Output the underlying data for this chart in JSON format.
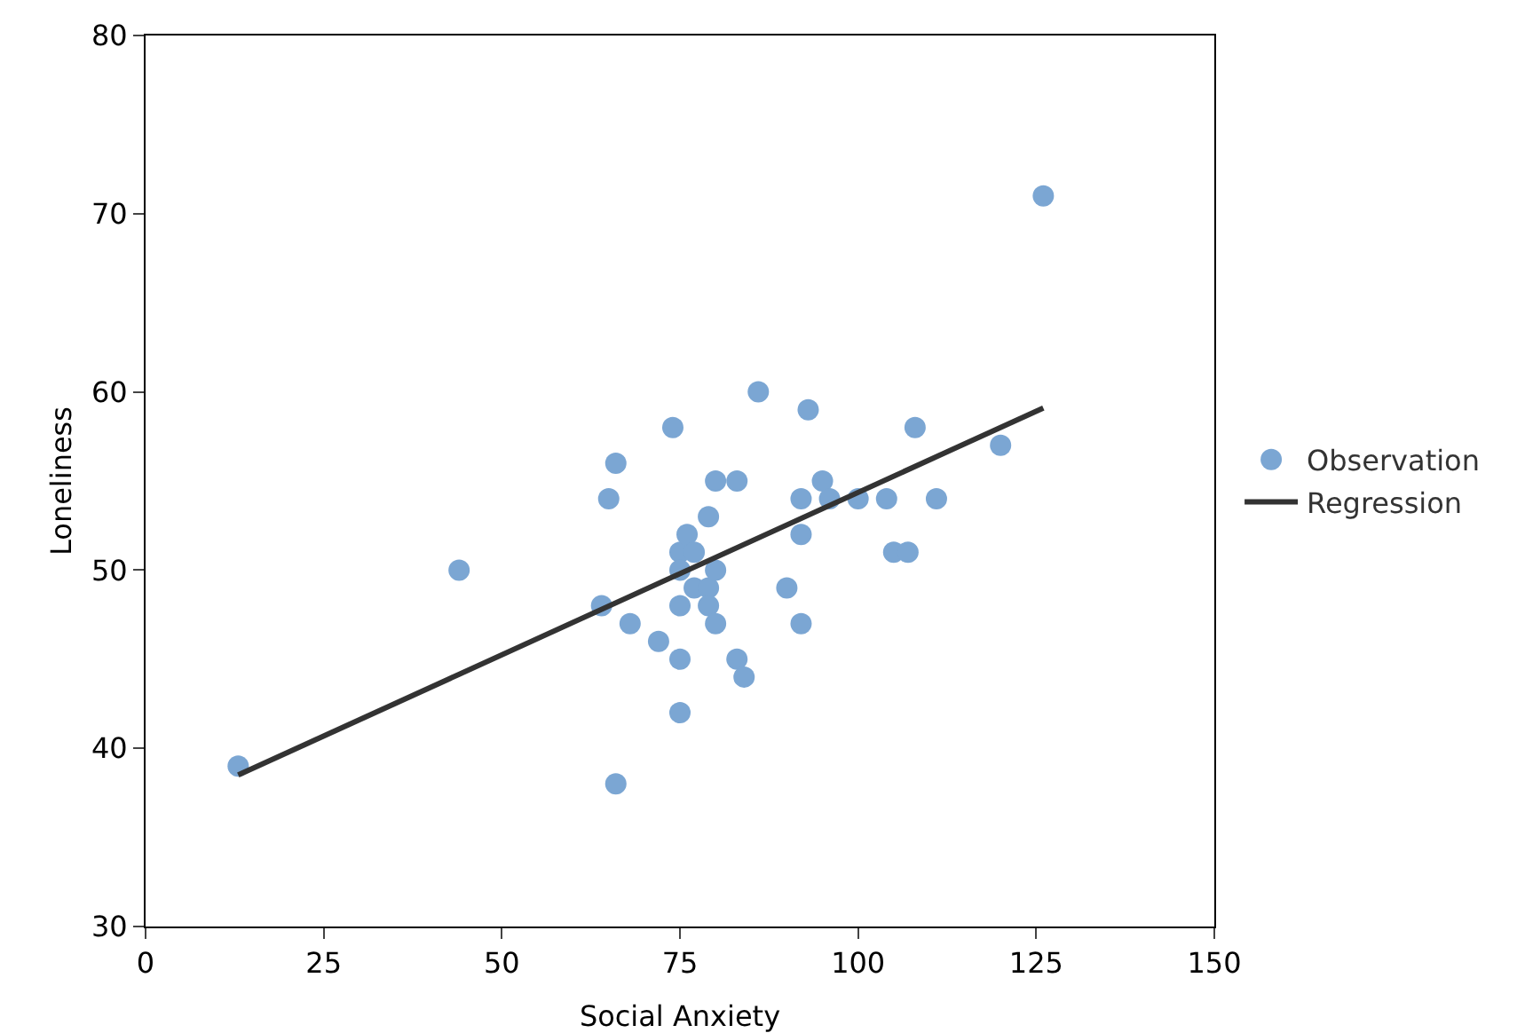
{
  "chart_data": {
    "type": "scatter",
    "xlabel": "Social Anxiety",
    "ylabel": "Loneliness",
    "xlim": [
      0,
      150
    ],
    "xticks": [
      0,
      25,
      50,
      75,
      100,
      125,
      150
    ],
    "ylim": [
      30,
      80
    ],
    "yticks": [
      30,
      40,
      50,
      60,
      70,
      80
    ],
    "grid": false,
    "legend": "right",
    "series": [
      {
        "name": "Observation",
        "marker": "circle",
        "color": "#7ba6d3",
        "x": [
          13,
          44,
          64,
          65,
          66,
          66,
          68,
          72,
          74,
          75,
          75,
          75,
          75,
          75,
          76,
          77,
          77,
          79,
          79,
          79,
          80,
          80,
          80,
          83,
          83,
          84,
          86,
          90,
          92,
          92,
          92,
          93,
          95,
          96,
          100,
          104,
          105,
          107,
          108,
          111,
          120,
          126
        ],
        "values": [
          39,
          50,
          48,
          54,
          56,
          38,
          47,
          46,
          58,
          51,
          50,
          48,
          45,
          42,
          52,
          51,
          49,
          49,
          53,
          48,
          50,
          55,
          47,
          55,
          45,
          44,
          60,
          49,
          54,
          52,
          47,
          59,
          55,
          54,
          54,
          54,
          51,
          51,
          58,
          54,
          57,
          71
        ]
      },
      {
        "name": "Regression",
        "type": "line",
        "color": "#333333",
        "line_style": "solid",
        "x": [
          13,
          126
        ],
        "values": [
          38.5,
          59.1
        ]
      }
    ]
  }
}
